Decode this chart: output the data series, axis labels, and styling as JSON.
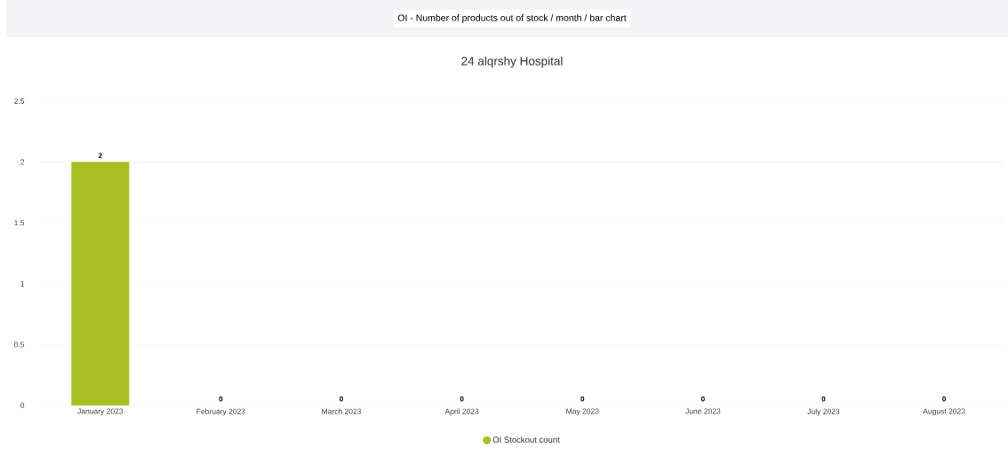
{
  "chart_data": {
    "type": "bar",
    "title": "OI - Number of products out of stock / month / bar chart",
    "subtitle": "24 alqrshy Hospital",
    "categories": [
      "January 2023",
      "February 2023",
      "March 2023",
      "April 2023",
      "May 2023",
      "June 2023",
      "July 2023",
      "August 2023"
    ],
    "series": [
      {
        "name": "OI Stockout count",
        "color": "#a8c023",
        "values": [
          2,
          0,
          0,
          0,
          0,
          0,
          0,
          0
        ]
      }
    ],
    "ylim": [
      0,
      2.5
    ],
    "yticks": [
      0,
      0.5,
      1,
      1.5,
      2,
      2.5
    ],
    "grid": "y",
    "legend": "bottom",
    "data_labels": true
  }
}
